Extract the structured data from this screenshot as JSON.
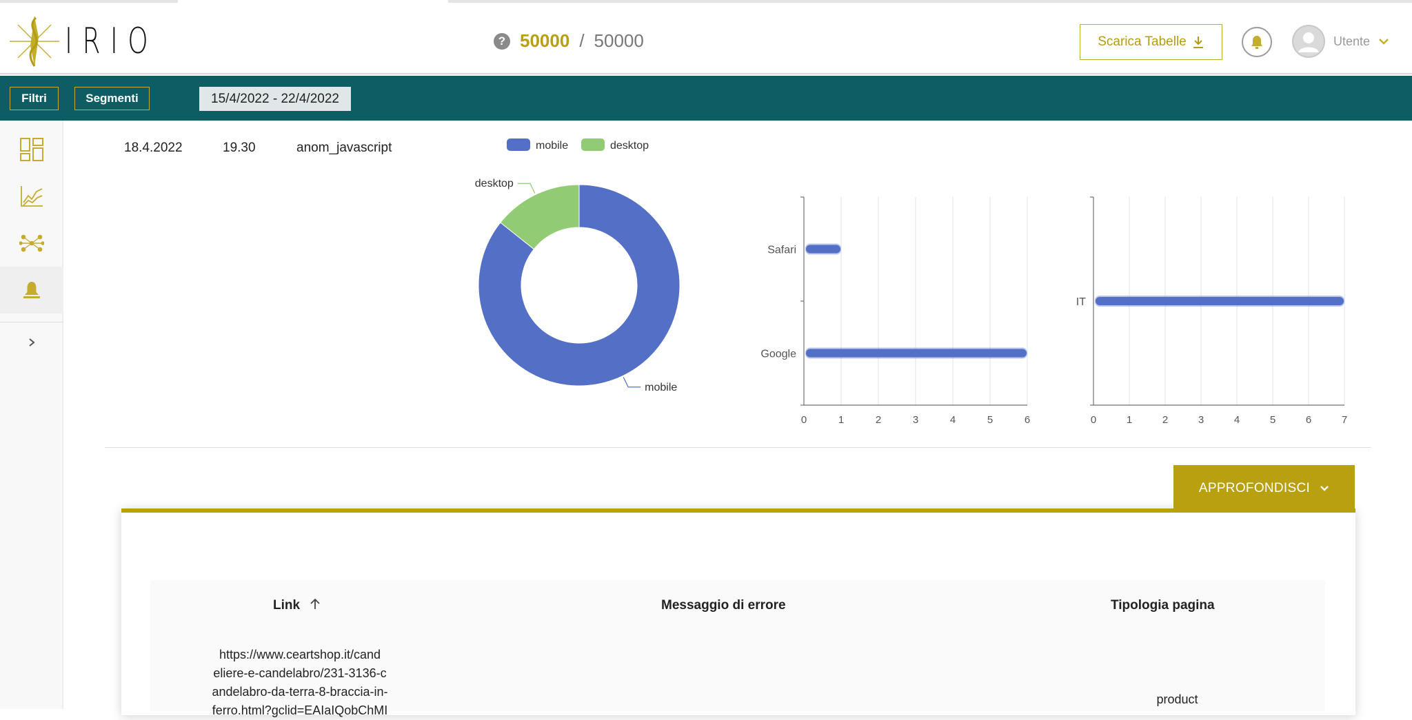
{
  "header": {
    "logo_text": "IRIO",
    "quota_used": "50000",
    "quota_separator": "/",
    "quota_total": "50000",
    "download_label": "Scarica Tabelle",
    "user_label": "Utente"
  },
  "filters": {
    "filtri_label": "Filtri",
    "segmenti_label": "Segmenti",
    "date_range": "15/4/2022 - 22/4/2022"
  },
  "sidebar": {
    "items": [
      "dashboard",
      "analytics",
      "integrations",
      "alerts"
    ],
    "active": "alerts"
  },
  "row": {
    "date": "18.4.2022",
    "time": "19.30",
    "event": "anom_javascript"
  },
  "chart_data": [
    {
      "type": "pie",
      "variant": "donut",
      "legend": [
        "mobile",
        "desktop"
      ],
      "labels": [
        "mobile",
        "desktop"
      ],
      "values": [
        6,
        1
      ],
      "colors": [
        "#5470c6",
        "#91cc75"
      ]
    },
    {
      "type": "bar",
      "orientation": "horizontal",
      "categories": [
        "Safari",
        "Google"
      ],
      "values": [
        1,
        6
      ],
      "xlim": [
        0,
        6
      ],
      "xticks": [
        "0",
        "1",
        "2",
        "3",
        "4",
        "5",
        "6"
      ]
    },
    {
      "type": "bar",
      "orientation": "horizontal",
      "categories": [
        "IT"
      ],
      "values": [
        7
      ],
      "xlim": [
        0,
        7
      ],
      "xticks": [
        "0",
        "1",
        "2",
        "3",
        "4",
        "5",
        "6",
        "7"
      ]
    }
  ],
  "deepen": {
    "label": "APPROFONDISCI"
  },
  "table": {
    "columns": [
      "Link",
      "Messaggio di errore",
      "Tipologia pagina"
    ],
    "rows": [
      {
        "link_lines": [
          "https://www.ceartshop.it/cand",
          "eliere-e-candelabro/231-3136-c",
          "andelabro-da-terra-8-braccia-in-",
          "ferro.html?gclid=EAIaIQobChMI"
        ],
        "error": "",
        "type": "product"
      }
    ]
  },
  "colors": {
    "accent": "#b8a00f",
    "teal": "#0e5c64",
    "mobile": "#5470c6",
    "desktop": "#91cc75"
  }
}
